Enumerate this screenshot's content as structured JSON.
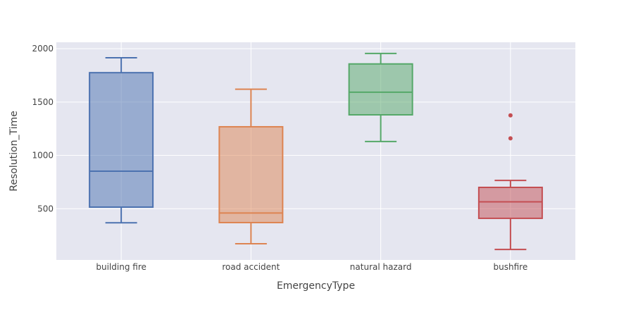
{
  "chart_data": {
    "type": "box",
    "xlabel": "EmergencyType",
    "ylabel": "Resolution_Time",
    "ylim": [
      20,
      2060
    ],
    "yticks": [
      500,
      1000,
      1500,
      2000
    ],
    "grid": true,
    "legend": "none",
    "plot_bgcolor": "#E5E6F0",
    "categories": [
      "building fire",
      "road accident",
      "natural hazard",
      "bushfire"
    ],
    "series": [
      {
        "category": "building fire",
        "color": "#4C72B0",
        "lower_whisker": 368,
        "q1": 515,
        "median": 852,
        "q3": 1775,
        "upper_whisker": 1915,
        "outliers": []
      },
      {
        "category": "road accident",
        "color": "#DD8452",
        "lower_whisker": 172,
        "q1": 370,
        "median": 460,
        "q3": 1268,
        "upper_whisker": 1620,
        "outliers": []
      },
      {
        "category": "natural hazard",
        "color": "#55A868",
        "lower_whisker": 1130,
        "q1": 1380,
        "median": 1592,
        "q3": 1857,
        "upper_whisker": 1955,
        "outliers": []
      },
      {
        "category": "bushfire",
        "color": "#C44E52",
        "lower_whisker": 118,
        "q1": 410,
        "median": 565,
        "q3": 700,
        "upper_whisker": 765,
        "outliers": [
          1160,
          1375
        ]
      }
    ]
  }
}
